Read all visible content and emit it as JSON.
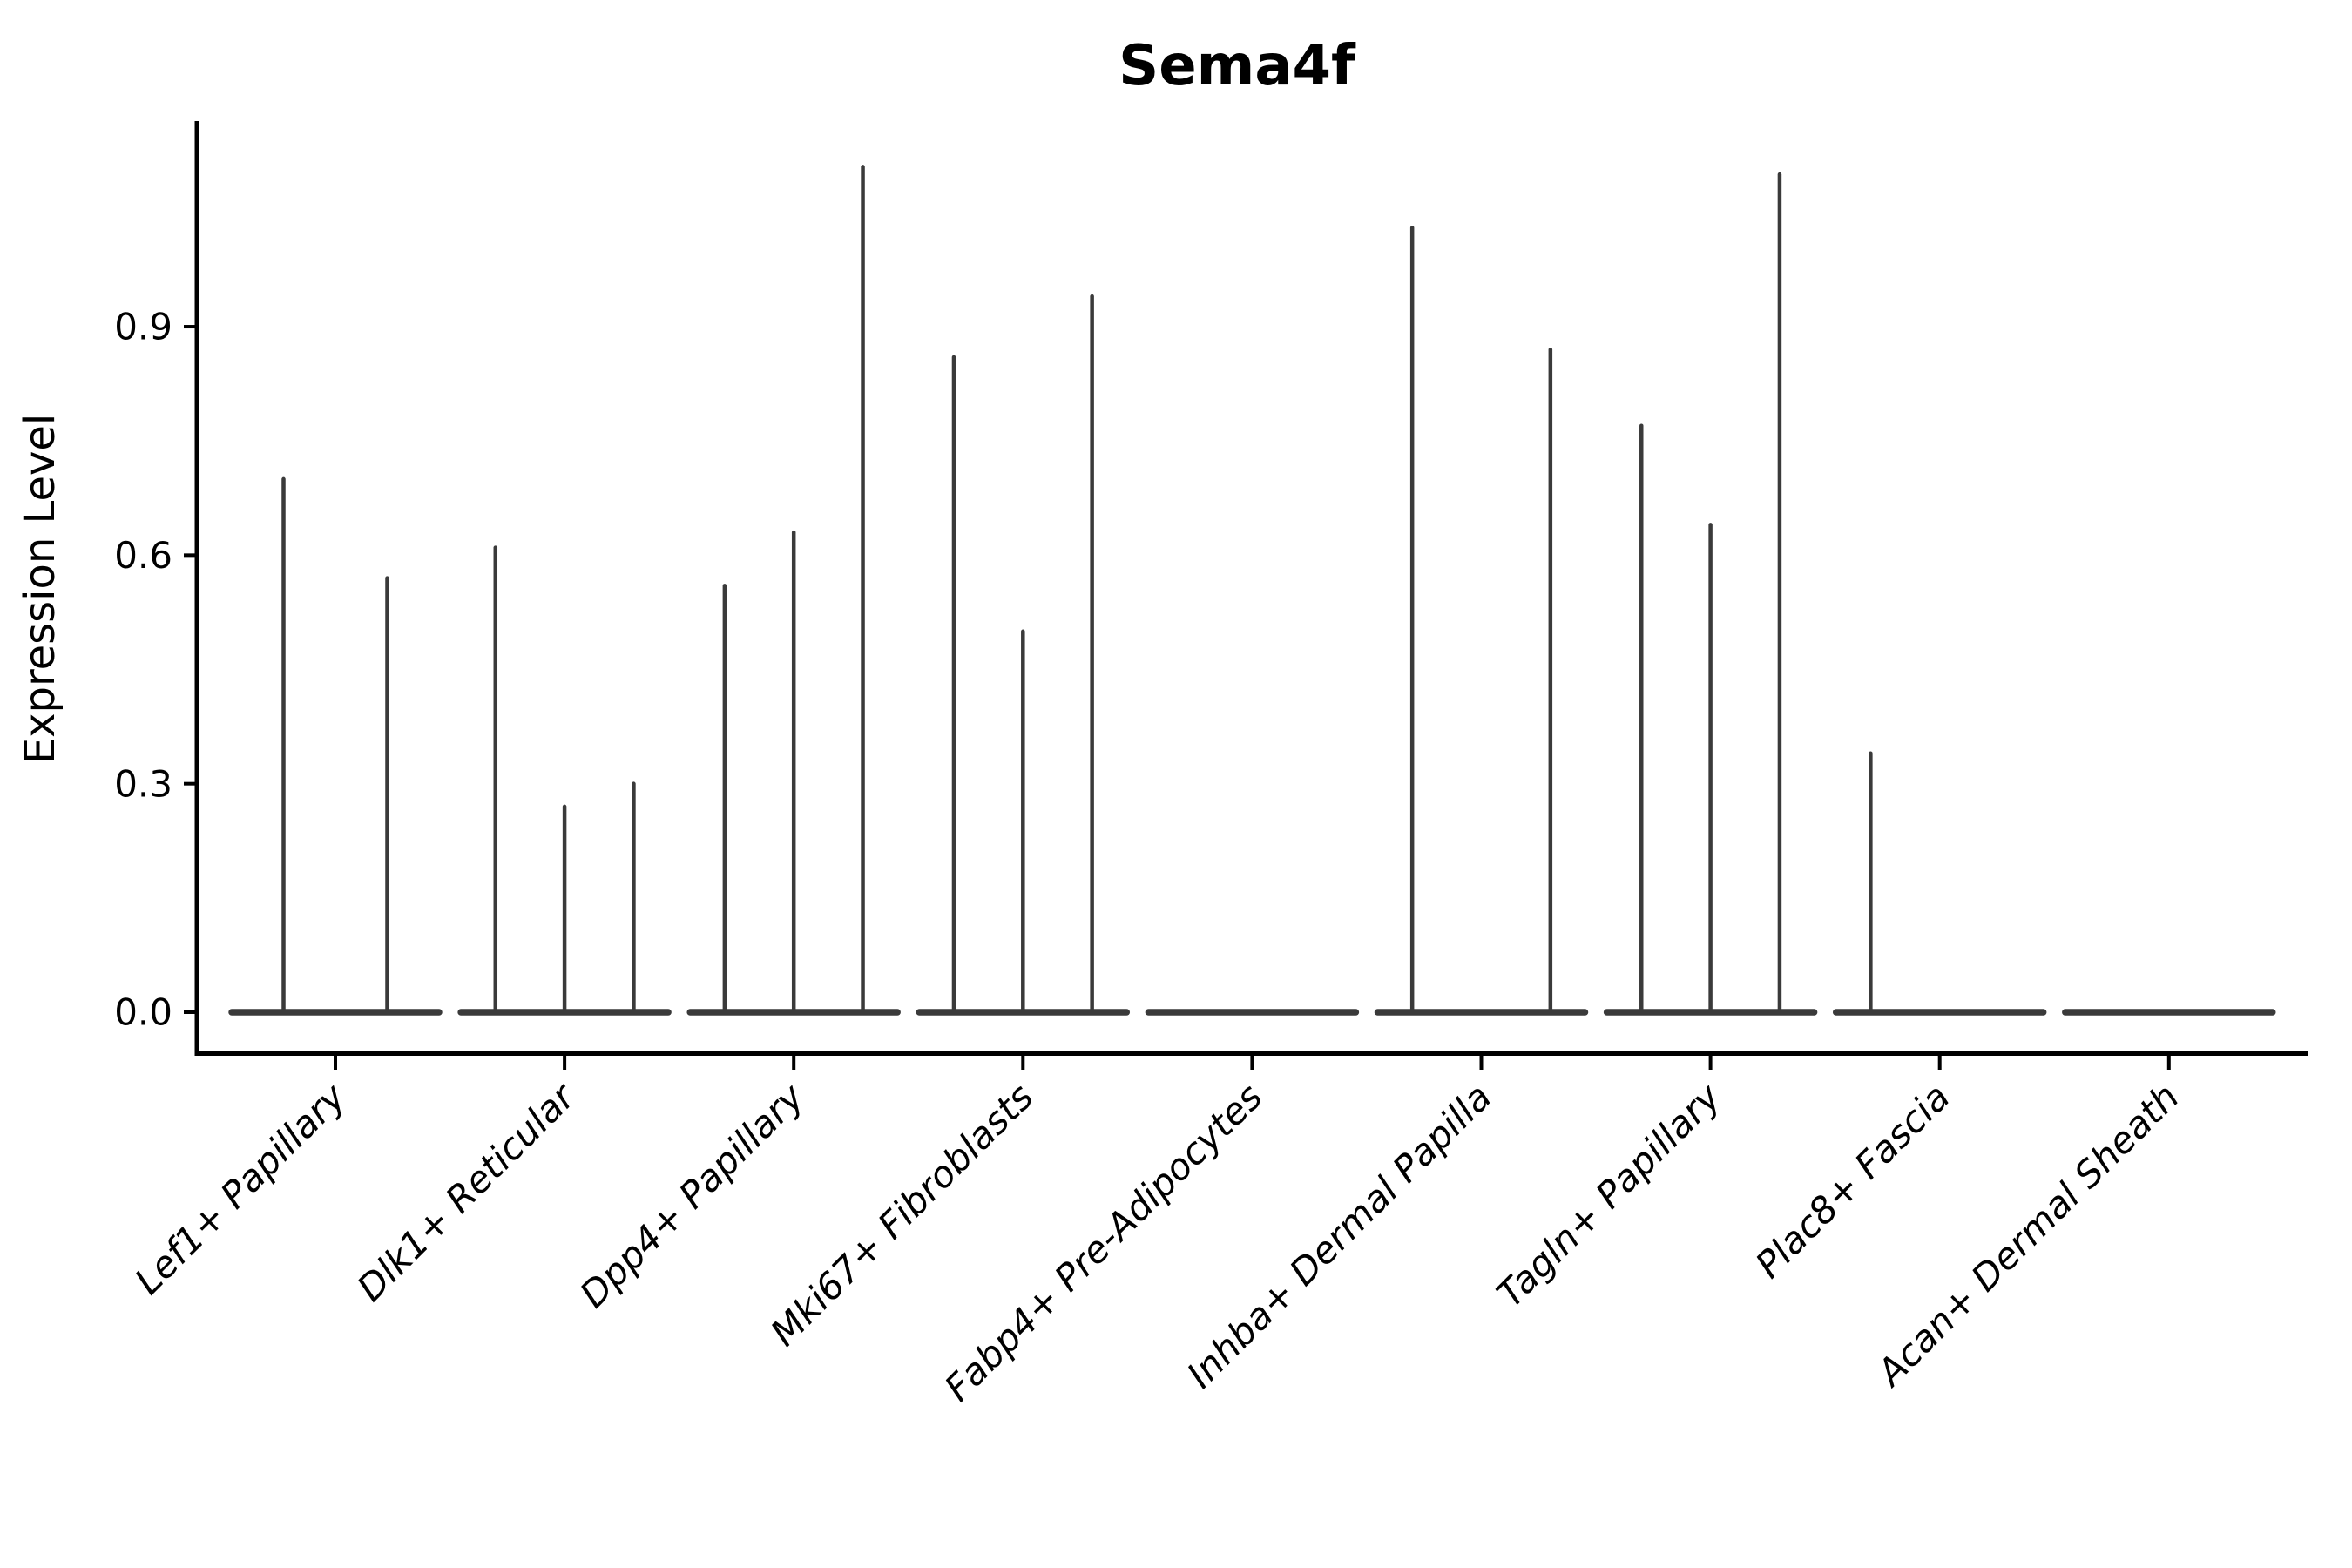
{
  "chart_data": {
    "type": "violin",
    "title": "Sema4f",
    "ylabel": "Expression Level",
    "xlabel": "",
    "yticks": [
      "0.0",
      "0.3",
      "0.6",
      "0.9"
    ],
    "ylim": [
      -0.05,
      1.17
    ],
    "legend": "none",
    "grid": false,
    "description": "Needle-thin expression violins; multiple violins per cell-type category share one flat baseline at 0. Values are the peak (max) expression height of each violin.",
    "groups": [
      {
        "label": "Lef1+ Papillary",
        "violins": [
          0.7,
          0.57
        ]
      },
      {
        "label": "Dlk1+ Reticular",
        "violins": [
          0.61,
          0.27,
          0.3
        ]
      },
      {
        "label": "Dpp4+ Papillary",
        "violins": [
          0.56,
          0.63,
          1.11
        ]
      },
      {
        "label": "Mki67+ Fibroblasts",
        "violins": [
          0.86,
          0.5,
          0.94
        ]
      },
      {
        "label": "Fabp4+ Pre-Adipocytes",
        "violins": [
          0,
          0,
          0
        ]
      },
      {
        "label": "Inhba+ Dermal Papilla",
        "violins": [
          1.03,
          0,
          0.87
        ]
      },
      {
        "label": "Tagln+ Papillary",
        "violins": [
          0.77,
          0.64,
          1.1
        ]
      },
      {
        "label": "Plac8+ Fascia",
        "violins": [
          0.34,
          0,
          0
        ]
      },
      {
        "label": "Acan+ Dermal Sheath",
        "violins": [
          0,
          0,
          0
        ]
      }
    ],
    "colors": {
      "violin": "#3a3a3a",
      "axis": "#000000",
      "text": "#000000",
      "background": "#ffffff"
    }
  }
}
